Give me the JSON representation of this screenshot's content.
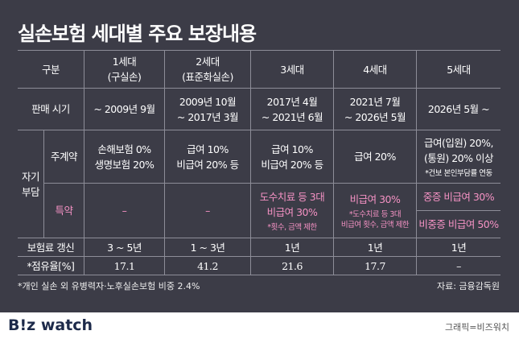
{
  "title": "실손보험 세대별 주요 보장내용",
  "table": {
    "header": {
      "label": [
        "구분"
      ],
      "cells": [
        [
          "1세대",
          "(구실손)"
        ],
        [
          "2세대",
          "(표준화실손)"
        ],
        [
          "3세대"
        ],
        [
          "4세대"
        ],
        [
          "5세대"
        ]
      ]
    },
    "sale": {
      "label": [
        "판매 시기"
      ],
      "cells": [
        [
          "~ 2009년 9월"
        ],
        [
          "2009년 10월",
          "~ 2017년 3월"
        ],
        [
          "2017년 4월",
          "~ 2021년 6월"
        ],
        [
          "2021년 7월",
          "~ 2026년 5월"
        ],
        [
          "2026년 5월 ~"
        ]
      ]
    },
    "self_burden": {
      "label": [
        "자기",
        "부담"
      ]
    },
    "main": {
      "label": [
        "주계약"
      ],
      "cells": [
        [
          "손해보험 0%",
          "생명보험 20%"
        ],
        [
          "급여 10%",
          "비급여 20% 등"
        ],
        [
          "급여 10%",
          "비급여 20% 등"
        ],
        [
          "급여 20%"
        ],
        [
          "급여(입원) 20%,",
          "(통원) 20% 이상"
        ]
      ],
      "notes": [
        null,
        null,
        null,
        null,
        [
          "*건보 본인부담률 연동"
        ]
      ]
    },
    "rider": {
      "label": [
        "특약"
      ],
      "cells": [
        [
          "–"
        ],
        [
          "–"
        ],
        [
          "도수치료 등 3대",
          "비급여 30%"
        ],
        [
          "비급여 30%"
        ],
        [
          "중증 비급여 30%"
        ]
      ],
      "notes": [
        null,
        null,
        [
          "*횟수, 금액 제한"
        ],
        [
          "*도수치료 등 3대",
          "비급여 횟수, 금액 제한"
        ],
        null
      ],
      "extra": [
        "비중증 비급여 50%"
      ]
    },
    "renewal": {
      "label": [
        "보험료 갱신"
      ],
      "cells": [
        [
          "3 ~ 5년"
        ],
        [
          "1 ~ 3년"
        ],
        [
          "1년"
        ],
        [
          "1년"
        ],
        [
          "1년"
        ]
      ]
    },
    "share": {
      "label": [
        "*점유율[%]"
      ],
      "cells": [
        [
          17.1
        ],
        [
          41.2
        ],
        [
          21.6
        ],
        [
          17.7
        ],
        [
          "–"
        ]
      ]
    }
  },
  "footnote": "*개인 실손 외 유병력자·노후실손보험 비중 2.4%",
  "source": "자료: 금융감독원",
  "logo": "B!z watch",
  "credit": "그래픽=비즈워치"
}
